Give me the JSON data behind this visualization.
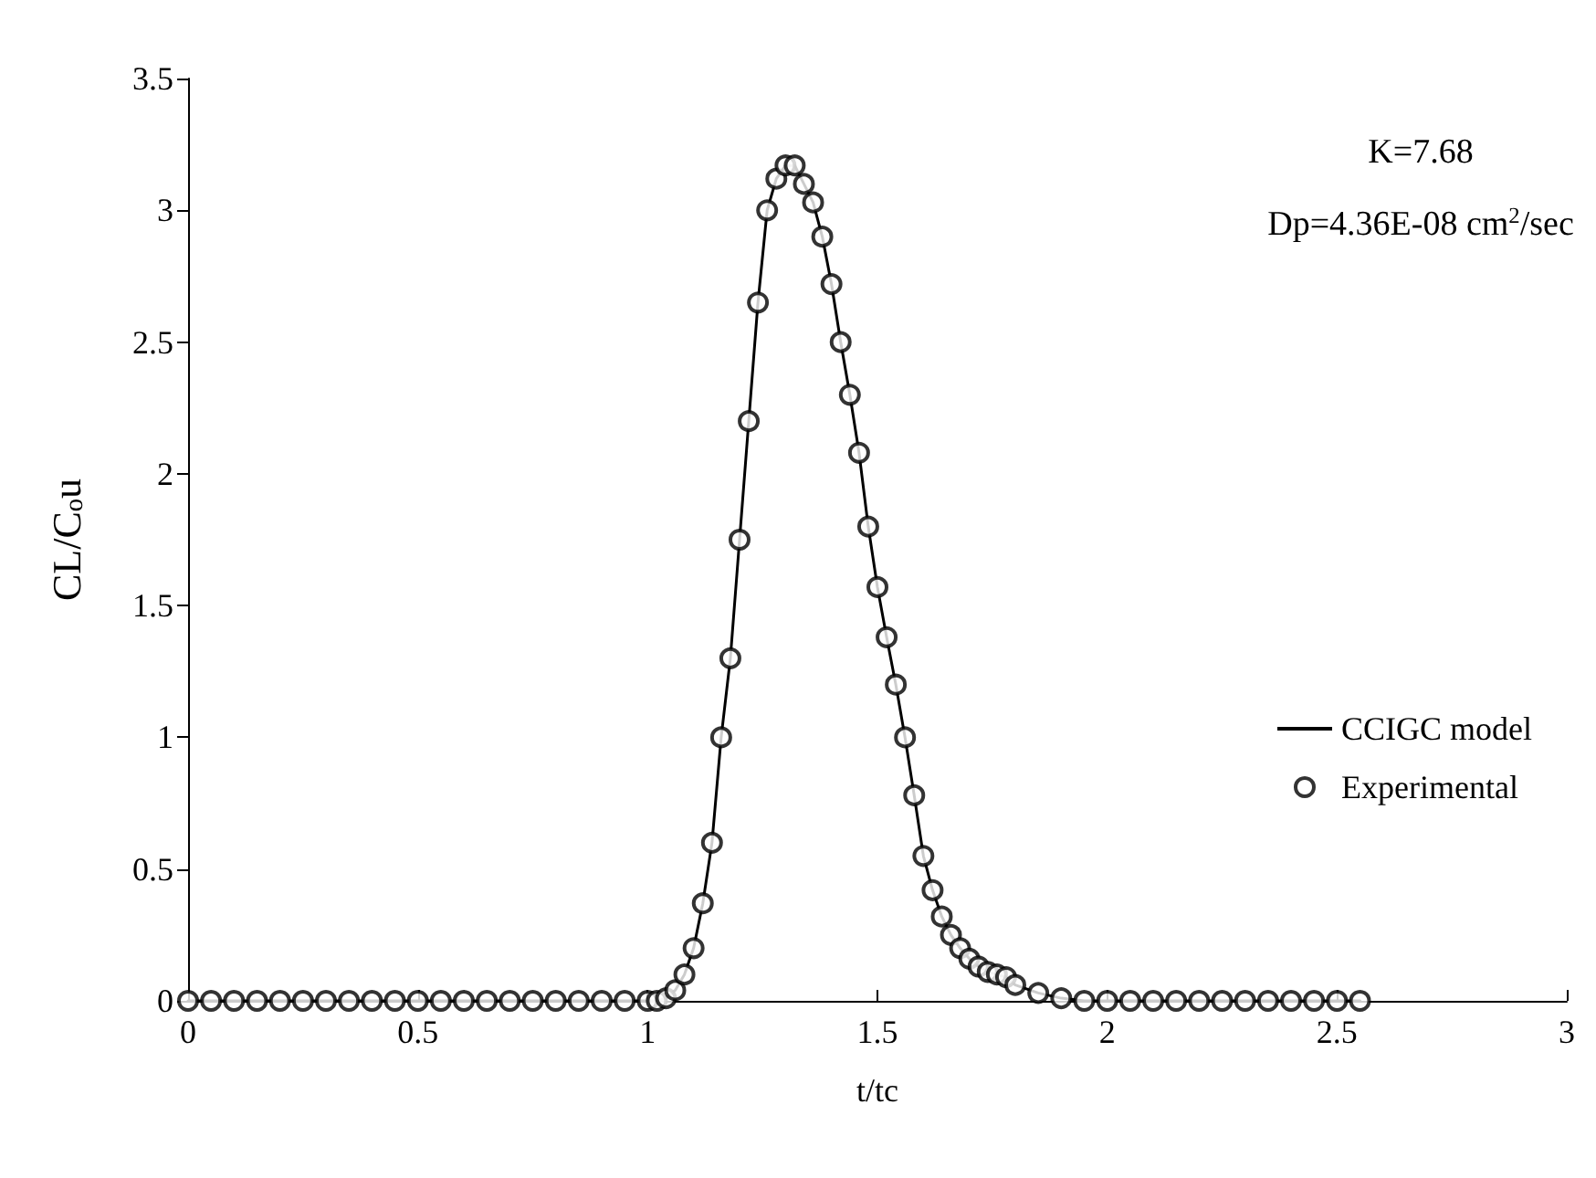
{
  "chart_data": {
    "type": "line",
    "xlabel": "t/tc",
    "ylabel": "CL/C$_{o}$u",
    "annotations": [
      "K=7.68",
      "Dp=4.36E-08 cm$^{2}$/sec"
    ],
    "x": [
      0,
      0.05,
      0.1,
      0.15,
      0.2,
      0.25,
      0.3,
      0.35,
      0.4,
      0.45,
      0.5,
      0.55,
      0.6,
      0.65,
      0.7,
      0.75,
      0.8,
      0.85,
      0.9,
      0.95,
      1.0,
      1.02,
      1.04,
      1.06,
      1.08,
      1.1,
      1.12,
      1.14,
      1.16,
      1.18,
      1.2,
      1.22,
      1.24,
      1.26,
      1.28,
      1.3,
      1.32,
      1.34,
      1.36,
      1.38,
      1.4,
      1.42,
      1.44,
      1.46,
      1.48,
      1.5,
      1.52,
      1.54,
      1.56,
      1.58,
      1.6,
      1.62,
      1.64,
      1.66,
      1.68,
      1.7,
      1.72,
      1.74,
      1.76,
      1.78,
      1.8,
      1.85,
      1.9,
      1.95,
      2.0,
      2.05,
      2.1,
      2.15,
      2.2,
      2.25,
      2.3,
      2.35,
      2.4,
      2.45,
      2.5,
      2.55
    ],
    "series": [
      {
        "name": "CCIGC model",
        "color": "#000000",
        "values": [
          0,
          0,
          0,
          0,
          0,
          0,
          0,
          0,
          0,
          0,
          0,
          0,
          0,
          0,
          0,
          0,
          0,
          0,
          0,
          0,
          0,
          0,
          0.01,
          0.04,
          0.1,
          0.2,
          0.37,
          0.6,
          1.0,
          1.3,
          1.75,
          2.2,
          2.65,
          3.0,
          3.12,
          3.17,
          3.17,
          3.1,
          3.03,
          2.9,
          2.72,
          2.5,
          2.3,
          2.08,
          1.8,
          1.57,
          1.38,
          1.2,
          1.0,
          0.78,
          0.55,
          0.42,
          0.32,
          0.25,
          0.2,
          0.16,
          0.13,
          0.11,
          0.1,
          0.09,
          0.06,
          0.03,
          0.01,
          0,
          0,
          0,
          0,
          0,
          0,
          0,
          0,
          0,
          0,
          0,
          0,
          0
        ]
      },
      {
        "name": "Experimental",
        "type": "scatter",
        "marker": "circle",
        "color": "#000000",
        "values": [
          0,
          0,
          0,
          0,
          0,
          0,
          0,
          0,
          0,
          0,
          0,
          0,
          0,
          0,
          0,
          0,
          0,
          0,
          0,
          0,
          0,
          0,
          0.01,
          0.04,
          0.1,
          0.2,
          0.37,
          0.6,
          1.0,
          1.3,
          1.75,
          2.2,
          2.65,
          3.0,
          3.12,
          3.17,
          3.17,
          3.1,
          3.03,
          2.9,
          2.72,
          2.5,
          2.3,
          2.08,
          1.8,
          1.57,
          1.38,
          1.2,
          1.0,
          0.78,
          0.55,
          0.42,
          0.32,
          0.25,
          0.2,
          0.16,
          0.13,
          0.11,
          0.1,
          0.09,
          0.06,
          0.03,
          0.01,
          0,
          0,
          0,
          0,
          0,
          0,
          0,
          0,
          0,
          0,
          0,
          0,
          0
        ]
      }
    ],
    "xlim": [
      0,
      3
    ],
    "xticks": [
      0,
      0.5,
      1,
      1.5,
      2,
      2.5,
      3
    ],
    "ylim": [
      0,
      3.5
    ],
    "yticks": [
      0,
      0.5,
      1,
      1.5,
      2,
      2.5,
      3,
      3.5
    ],
    "grid": false,
    "legend": "right"
  }
}
